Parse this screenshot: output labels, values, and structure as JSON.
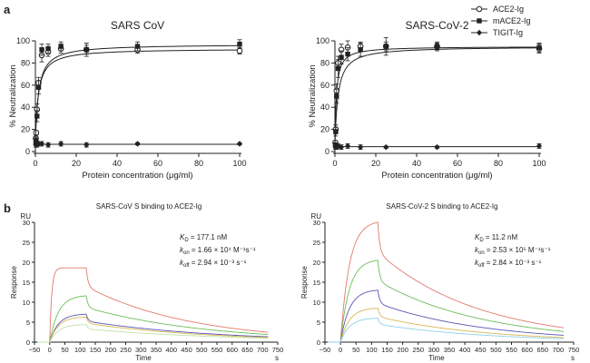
{
  "panel_labels": {
    "a": "a",
    "b": "b"
  },
  "legend": [
    {
      "label": "ACE2-Ig",
      "marker": "open-circle"
    },
    {
      "label": "mACE2-Ig",
      "marker": "filled-square"
    },
    {
      "label": "TIGIT-Ig",
      "marker": "filled-diamond"
    }
  ],
  "chart_data": [
    {
      "type": "scatter",
      "title": "SARS CoV",
      "xlabel": "Protein concentration (μg/ml)",
      "ylabel": "% Neutralization",
      "xlim": [
        0,
        100
      ],
      "ylim": [
        0,
        100
      ],
      "xticks": [
        "0",
        "20",
        "40",
        "60",
        "80",
        "100"
      ],
      "yticks": [
        "0",
        "20",
        "40",
        "60",
        "80",
        "100"
      ],
      "x": [
        0.2,
        0.39,
        0.78,
        1.56,
        3.13,
        6.25,
        12.5,
        25,
        50,
        100
      ],
      "series": [
        {
          "name": "ACE2-Ig",
          "marker": "open-circle",
          "values": [
            12,
            17,
            38,
            62,
            87,
            90,
            93,
            92,
            92,
            91
          ],
          "errors": [
            2,
            2,
            5,
            5,
            6,
            4,
            4,
            4,
            3,
            3
          ]
        },
        {
          "name": "mACE2-Ig",
          "marker": "filled-square",
          "values": [
            8,
            10,
            32,
            58,
            92,
            93,
            95,
            92,
            95,
            97
          ],
          "errors": [
            2,
            3,
            5,
            6,
            5,
            4,
            4,
            6,
            4,
            4
          ]
        },
        {
          "name": "TIGIT-Ig",
          "marker": "filled-diamond",
          "values": [
            6,
            7,
            6,
            7,
            7,
            6,
            7,
            6,
            7,
            7
          ],
          "errors": [
            2,
            2,
            2,
            2,
            2,
            2,
            2,
            2,
            1,
            1
          ]
        }
      ]
    },
    {
      "type": "scatter",
      "title": "SARS-CoV-2",
      "xlabel": "Protein concentration (μg/ml)",
      "ylabel": "% Neutralization",
      "xlim": [
        0,
        100
      ],
      "ylim": [
        0,
        100
      ],
      "xticks": [
        "0",
        "20",
        "40",
        "60",
        "80",
        "100"
      ],
      "yticks": [
        "0",
        "20",
        "40",
        "60",
        "80",
        "100"
      ],
      "x": [
        0.2,
        0.39,
        0.78,
        1.56,
        3.13,
        6.25,
        12.5,
        25,
        50,
        100
      ],
      "series": [
        {
          "name": "ACE2-Ig",
          "marker": "open-circle",
          "values": [
            8,
            20,
            55,
            80,
            92,
            94,
            95,
            95,
            95,
            93
          ],
          "errors": [
            2,
            4,
            6,
            6,
            5,
            6,
            4,
            4,
            3,
            4
          ]
        },
        {
          "name": "mACE2-Ig",
          "marker": "filled-square",
          "values": [
            6,
            18,
            50,
            75,
            85,
            88,
            92,
            95,
            95,
            94
          ],
          "errors": [
            2,
            4,
            6,
            8,
            6,
            6,
            6,
            8,
            4,
            4
          ]
        },
        {
          "name": "TIGIT-Ig",
          "marker": "filled-diamond",
          "values": [
            4,
            5,
            4,
            5,
            4,
            5,
            4,
            4,
            4,
            5
          ],
          "errors": [
            2,
            2,
            2,
            2,
            2,
            2,
            2,
            1,
            1,
            2
          ]
        }
      ]
    },
    {
      "type": "line",
      "title": "SARS-CoV S binding to ACE2-Ig",
      "xlabel": "Time",
      "xunit": "s",
      "ylabel": "Response",
      "yunit": "RU",
      "xlim": [
        -50,
        750
      ],
      "ylim": [
        0,
        30
      ],
      "xticks": [
        "−50",
        "0",
        "50",
        "100",
        "150",
        "200",
        "250",
        "300",
        "350",
        "400",
        "450",
        "500",
        "550",
        "600",
        "650",
        "700",
        "750"
      ],
      "yticks": [
        "0",
        "5",
        "10",
        "15",
        "20",
        "25",
        "30"
      ],
      "association_end": 120,
      "time_end": 720,
      "annotation": [
        "177.1 nM",
        "1.66 × 10⁴ M⁻¹s⁻¹",
        "2.94 × 10⁻³ s⁻¹"
      ],
      "series": [
        {
          "color": "#e27a6e",
          "plateau": 18.6,
          "end": 2.6
        },
        {
          "color": "#6bbf59",
          "plateau": 11.6,
          "end": 2.0
        },
        {
          "color": "#5a57b5",
          "plateau": 7.0,
          "end": 1.4
        },
        {
          "color": "#d8b654",
          "plateau": 6.3,
          "end": 1.2
        },
        {
          "color": "#c2e2a8",
          "plateau": 4.4,
          "end": 1.0
        }
      ]
    },
    {
      "type": "line",
      "title": "SARS-CoV-2 S binding to ACE2-Ig",
      "xlabel": "Time",
      "xunit": "s",
      "ylabel": "Response",
      "yunit": "RU",
      "xlim": [
        -50,
        750
      ],
      "ylim": [
        0,
        30
      ],
      "xticks": [
        "−50",
        "0",
        "50",
        "100",
        "150",
        "200",
        "250",
        "300",
        "350",
        "400",
        "450",
        "500",
        "550",
        "600",
        "650",
        "700",
        "750"
      ],
      "yticks": [
        "0",
        "5",
        "10",
        "15",
        "20",
        "25",
        "30"
      ],
      "association_end": 120,
      "time_end": 720,
      "annotation": [
        "11.2 nM",
        "2.53 × 10⁵ M⁻¹s⁻¹",
        "2.84 × 10⁻³ s⁻¹"
      ],
      "series": [
        {
          "color": "#e27a6e",
          "plateau": 30.0,
          "end": 3.8
        },
        {
          "color": "#6bbf59",
          "plateau": 20.5,
          "end": 2.8
        },
        {
          "color": "#5a57b5",
          "plateau": 13.0,
          "end": 1.8
        },
        {
          "color": "#d8b654",
          "plateau": 8.5,
          "end": 1.2
        },
        {
          "color": "#8fd0e8",
          "plateau": 6.0,
          "end": 0.9
        }
      ]
    }
  ]
}
